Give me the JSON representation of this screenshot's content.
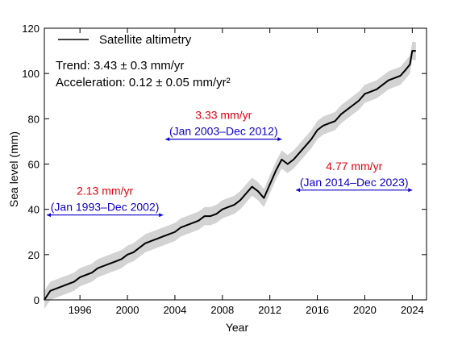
{
  "chart_data": {
    "type": "line",
    "title": "",
    "xlabel": "Year",
    "ylabel": "Sea level (mm)",
    "xlim": [
      1993.0,
      2025.2
    ],
    "ylim": [
      0,
      120
    ],
    "x_ticks": [
      1996,
      2000,
      2004,
      2008,
      2012,
      2016,
      2020,
      2024
    ],
    "y_ticks": [
      0,
      20,
      40,
      60,
      80,
      100,
      120
    ],
    "grid": false,
    "legend": {
      "placement": "top-left",
      "entries": [
        "Satellite altimetry"
      ]
    },
    "series": [
      {
        "name": "Satellite altimetry",
        "color": "#000000",
        "uncertainty_band_color": "#d3d3d3",
        "uncertainty_halfwidth": 4,
        "x": [
          1993.0,
          1993.5,
          1994.0,
          1994.5,
          1995.0,
          1995.5,
          1996.0,
          1996.5,
          1997.0,
          1997.5,
          1998.0,
          1998.5,
          1999.0,
          1999.5,
          2000.0,
          2000.5,
          2001.0,
          2001.5,
          2002.0,
          2002.5,
          2003.0,
          2003.5,
          2004.0,
          2004.5,
          2005.0,
          2005.5,
          2006.0,
          2006.5,
          2007.0,
          2007.5,
          2008.0,
          2008.5,
          2009.0,
          2009.5,
          2010.0,
          2010.5,
          2011.0,
          2011.5,
          2012.0,
          2012.5,
          2013.0,
          2013.5,
          2014.0,
          2014.5,
          2015.0,
          2015.5,
          2016.0,
          2016.5,
          2017.0,
          2017.5,
          2018.0,
          2018.5,
          2019.0,
          2019.5,
          2020.0,
          2020.5,
          2021.0,
          2021.5,
          2022.0,
          2022.5,
          2023.0,
          2023.5,
          2023.8,
          2024.0,
          2024.3
        ],
        "values": [
          0,
          4,
          5,
          6,
          7,
          8,
          10,
          11,
          12,
          14,
          15,
          16,
          17,
          18,
          20,
          21,
          23,
          25,
          26,
          27,
          28,
          29,
          30,
          32,
          33,
          34,
          35,
          37,
          37,
          38,
          40,
          41,
          42,
          44,
          47,
          50,
          48,
          45,
          51,
          57,
          62,
          60,
          62,
          65,
          68,
          71,
          75,
          77,
          78,
          79,
          82,
          84,
          86,
          88,
          91,
          92,
          93,
          95,
          97,
          98,
          99,
          102,
          104,
          110,
          110
        ]
      }
    ],
    "annotations": {
      "stats": [
        "Trend: 3.43 ± 0.3 mm/yr",
        "Acceleration: 0.12 ± 0.05 mm/yr²"
      ],
      "periods": [
        {
          "rate": "2.13 mm/yr",
          "label": "(Jan 1993–Dec 2002)",
          "x_start": 1993.0,
          "x_end": 2003.0,
          "y": 37.5,
          "rate_color": "#e8000b",
          "label_color": "#0d00c9"
        },
        {
          "rate": "3.33 mm/yr",
          "label": "(Jan 2003–Dec 2012)",
          "x_start": 2003.0,
          "x_end": 2013.0,
          "y": 71,
          "rate_color": "#e8000b",
          "label_color": "#0d00c9"
        },
        {
          "rate": "4.77 mm/yr",
          "label": "(Jan 2014–Dec 2023)",
          "x_start": 2014.0,
          "x_end": 2024.0,
          "y": 48.5,
          "rate_color": "#e8000b",
          "label_color": "#0d00c9"
        }
      ]
    }
  }
}
